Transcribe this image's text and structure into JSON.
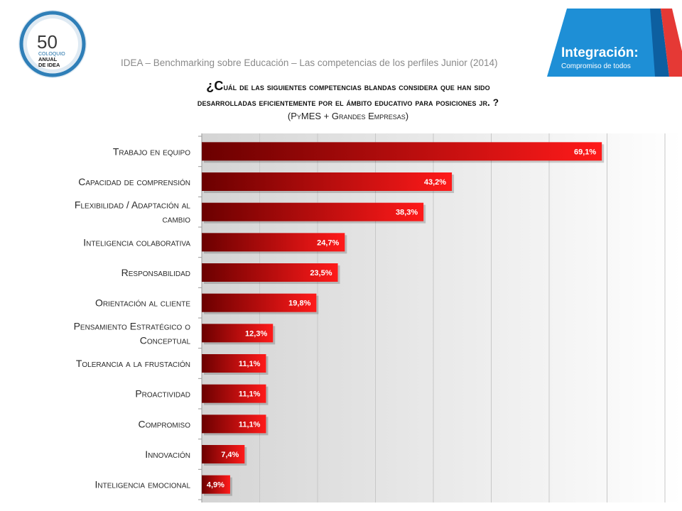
{
  "header": {
    "line": "IDEA – Benchmarking sobre Educación – Las competencias de los perfiles Junior (2014)"
  },
  "logo_left": {
    "number": "50",
    "line1": "COLOQUIO",
    "line2": "ANUAL",
    "line3": "DE IDEA"
  },
  "logo_right": {
    "title": "Integración:",
    "subtitle": "Compromiso de todos"
  },
  "question": {
    "first_letter": "¿C",
    "line1_rest": "uál de las siguientes competencias blandas considera que han sido",
    "line2": "desarrolladas eficientemente por el ámbito educativo para posiciones jr. ?"
  },
  "subtitle": "(PyMES + Grandes Empresas)",
  "chart_data": {
    "type": "bar",
    "orientation": "horizontal",
    "categories": [
      "Trabajo en equipo",
      "Capacidad de comprensión",
      "Flexibilidad / Adaptación al cambio",
      "Inteligencia colaborativa",
      "Responsabilidad",
      "Orientación al cliente",
      "Pensamiento Estratégico o Conceptual",
      "Tolerancia a la frustación",
      "Proactividad",
      "Compromiso",
      "Innovación",
      "Inteligencia emocional"
    ],
    "category_lines": [
      [
        "Trabajo en equipo"
      ],
      [
        "Capacidad de comprensión"
      ],
      [
        "Flexibilidad / Adaptación al",
        "cambio"
      ],
      [
        "Inteligencia colaborativa"
      ],
      [
        "Responsabilidad"
      ],
      [
        "Orientación al cliente"
      ],
      [
        "Pensamiento Estratégico o",
        "Conceptual"
      ],
      [
        "Tolerancia a la frustación"
      ],
      [
        "Proactividad"
      ],
      [
        "Compromiso"
      ],
      [
        "Innovación"
      ],
      [
        "Inteligencia emocional"
      ]
    ],
    "values": [
      69.1,
      43.2,
      38.3,
      24.7,
      23.5,
      19.8,
      12.3,
      11.1,
      11.1,
      11.1,
      7.4,
      4.9
    ],
    "value_labels": [
      "69,1%",
      "43,2%",
      "38,3%",
      "24,7%",
      "23,5%",
      "19,8%",
      "12,3%",
      "11,1%",
      "11,1%",
      "11,1%",
      "7,4%",
      "4,9%"
    ],
    "xlim": [
      0,
      80
    ],
    "grid": true,
    "legend": "none",
    "colors": {
      "bar_start": "#6b0000",
      "bar_end": "#ff1a1a",
      "grid": "#c8c8c8"
    }
  }
}
